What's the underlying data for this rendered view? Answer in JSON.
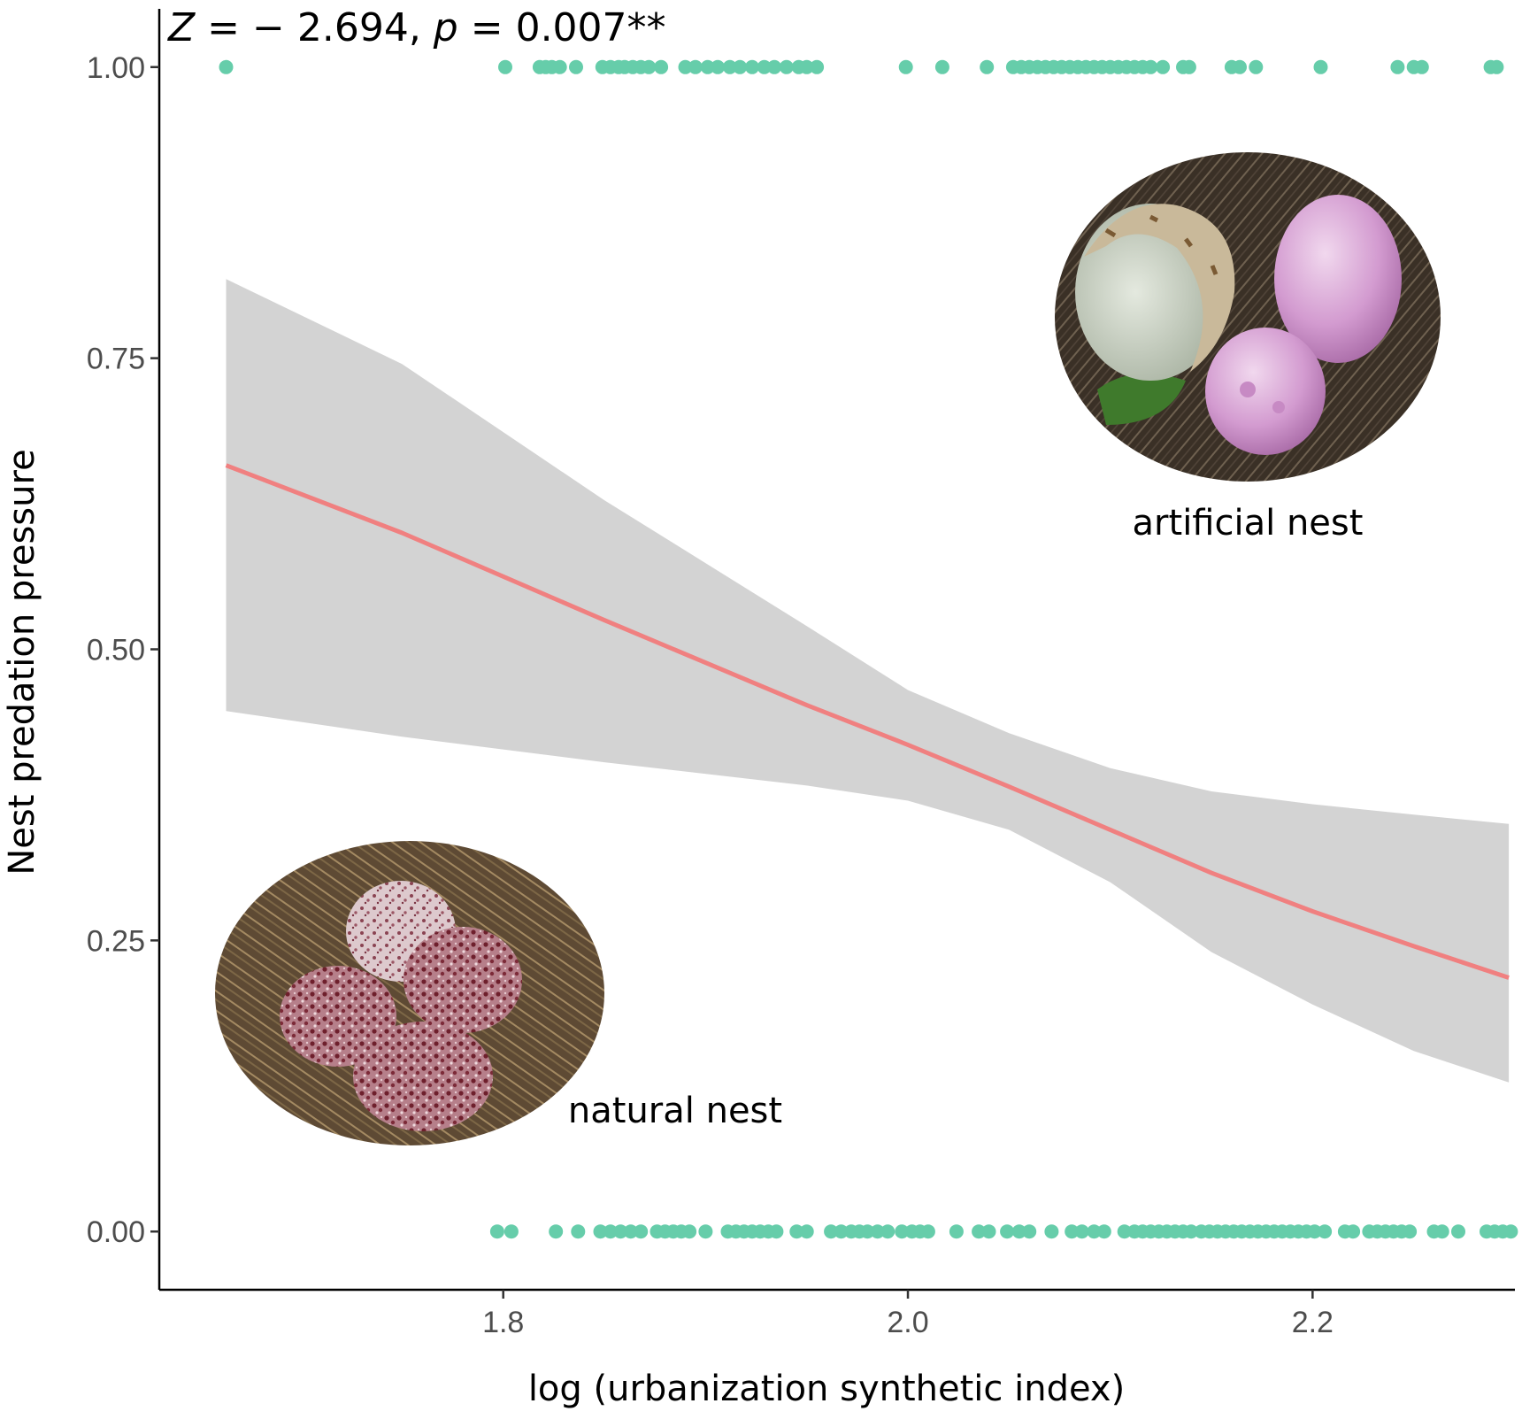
{
  "chart_data": {
    "type": "scatter",
    "annotation": {
      "z_symbol": "Z",
      "z_rest": " = − 2.694, ",
      "p_symbol": "p",
      "p_rest": " = 0.007**"
    },
    "xlabel": "log (urbanization synthetic index)",
    "ylabel": "Nest predation pressure",
    "xlim": [
      1.63,
      2.3
    ],
    "ylim": [
      -0.05,
      1.05
    ],
    "x_ticks": [
      1.8,
      2.0,
      2.2
    ],
    "x_tick_labels": [
      "1.8",
      "2.0",
      "2.2"
    ],
    "y_ticks": [
      0,
      0.25,
      0.5,
      0.75,
      1.0
    ],
    "y_tick_labels": [
      "0.00",
      "0.25",
      "0.50",
      "0.75",
      "1.00"
    ],
    "grid": false,
    "point_color": "#66cdaa",
    "line_color": "#f08080",
    "band_color": "#d3d3d3",
    "points": [
      {
        "y": 1,
        "x": [
          1.663,
          1.801,
          1.818,
          1.821,
          1.824,
          1.828,
          1.836,
          1.849,
          1.853,
          1.857,
          1.86,
          1.864,
          1.868,
          1.872,
          1.878,
          1.89,
          1.895,
          1.901,
          1.906,
          1.912,
          1.917,
          1.923,
          1.929,
          1.934,
          1.94,
          1.946,
          1.95,
          1.955,
          1.999,
          2.017,
          2.039,
          2.052,
          2.056,
          2.06,
          2.064,
          2.068,
          2.072,
          2.076,
          2.08,
          2.084,
          2.088,
          2.092,
          2.096,
          2.1,
          2.104,
          2.108,
          2.112,
          2.116,
          2.12,
          2.126,
          2.136,
          2.139,
          2.16,
          2.164,
          2.172,
          2.204,
          2.242,
          2.25,
          2.254,
          2.288,
          2.291
        ]
      },
      {
        "y": 0,
        "x": [
          1.797,
          1.804,
          1.826,
          1.837,
          1.848,
          1.853,
          1.858,
          1.863,
          1.868,
          1.876,
          1.88,
          1.884,
          1.888,
          1.892,
          1.9,
          1.911,
          1.915,
          1.919,
          1.923,
          1.927,
          1.931,
          1.935,
          1.945,
          1.95,
          1.962,
          1.967,
          1.972,
          1.976,
          1.98,
          1.985,
          1.99,
          1.997,
          2.002,
          2.006,
          2.01,
          2.024,
          2.035,
          2.04,
          2.049,
          2.055,
          2.06,
          2.071,
          2.081,
          2.086,
          2.092,
          2.097,
          2.107,
          2.112,
          2.116,
          2.12,
          2.124,
          2.128,
          2.132,
          2.136,
          2.14,
          2.145,
          2.149,
          2.153,
          2.157,
          2.161,
          2.165,
          2.169,
          2.173,
          2.177,
          2.181,
          2.185,
          2.189,
          2.193,
          2.197,
          2.201,
          2.206,
          2.216,
          2.22,
          2.228,
          2.232,
          2.236,
          2.24,
          2.244,
          2.248,
          2.26,
          2.264,
          2.272,
          2.286,
          2.29,
          2.294,
          2.298
        ]
      }
    ],
    "series": [
      {
        "x": [
          1.663,
          1.75,
          1.85,
          1.95,
          2.0,
          2.05,
          2.1,
          2.15,
          2.2,
          2.25,
          2.297
        ],
        "fit": [
          0.658,
          0.6,
          0.525,
          0.452,
          0.418,
          0.382,
          0.345,
          0.308,
          0.275,
          0.245,
          0.218
        ],
        "lower": [
          0.447,
          0.425,
          0.403,
          0.383,
          0.37,
          0.345,
          0.3,
          0.24,
          0.195,
          0.155,
          0.128
        ],
        "upper": [
          0.818,
          0.745,
          0.628,
          0.52,
          0.465,
          0.428,
          0.398,
          0.378,
          0.367,
          0.358,
          0.35
        ]
      }
    ]
  },
  "insets": {
    "artificial_label": "artificial nest",
    "natural_label": "natural nest"
  }
}
